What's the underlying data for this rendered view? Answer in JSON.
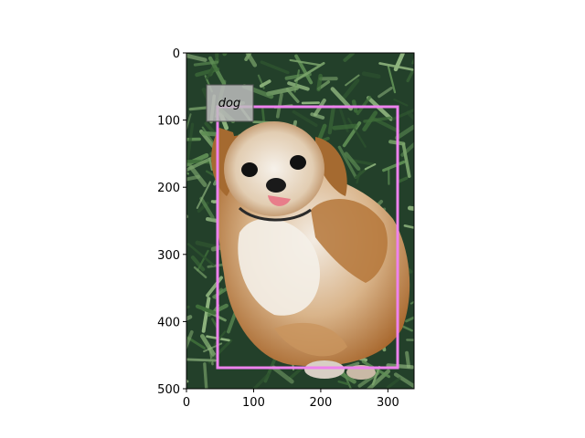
{
  "axes": {
    "x_ticks": [
      "0",
      "100",
      "200",
      "300"
    ],
    "y_ticks": [
      "0",
      "100",
      "200",
      "300",
      "400",
      "500"
    ],
    "xlim": [
      0,
      339
    ],
    "ylim": [
      500,
      0
    ]
  },
  "image": {
    "subject": "dog"
  },
  "detection": {
    "label": "dog",
    "box_color": "#ee82ee",
    "label_bg": "#bdbdbd"
  },
  "colors": {
    "grass_dark": "#1c3a1f",
    "grass_light": "#5f8f55",
    "fur_tan": "#c48a4c",
    "fur_light": "#efe6da"
  }
}
